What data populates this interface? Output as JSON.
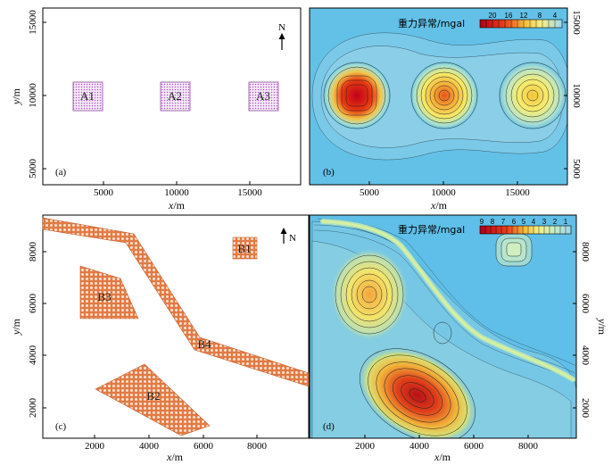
{
  "panels": [
    {
      "id": "a",
      "label": "(a)",
      "north": "N",
      "blocks": [
        {
          "name": "A1"
        },
        {
          "name": "A2"
        },
        {
          "name": "A3"
        }
      ],
      "xticks": [
        "5000",
        "10000",
        "15000"
      ],
      "yticks": [
        "5000",
        "10000",
        "15000"
      ],
      "xlabel": "x/m",
      "ylabel": "y/m"
    },
    {
      "id": "b",
      "label": "(b)",
      "colorbar_title": "重力异常/mgal",
      "colorbar_ticks": [
        "20",
        "16",
        "12",
        "8",
        "4"
      ],
      "xticks": [
        "5000",
        "10000",
        "15000"
      ],
      "yticks": [
        "5000",
        "10000",
        "15000"
      ],
      "xlabel": "x/m"
    },
    {
      "id": "c",
      "label": "(c)",
      "north": "N",
      "blocks": [
        {
          "name": "B1"
        },
        {
          "name": "B2"
        },
        {
          "name": "B3"
        },
        {
          "name": "B4"
        }
      ],
      "xticks": [
        "2000",
        "4000",
        "6000",
        "8000"
      ],
      "yticks": [
        "2000",
        "4000",
        "6000",
        "8000"
      ],
      "xlabel": "x/m",
      "ylabel": "y/m"
    },
    {
      "id": "d",
      "label": "(d)",
      "colorbar_title": "重力异常/mgal",
      "colorbar_ticks": [
        "9",
        "8",
        "7",
        "6",
        "5",
        "4",
        "3",
        "2",
        "1"
      ],
      "xticks": [
        "2000",
        "4000",
        "6000",
        "8000"
      ],
      "yticks": [
        "2000",
        "4000",
        "6000",
        "8000"
      ],
      "xlabel": "x/m",
      "ylabel": "y/m"
    }
  ],
  "colors": {
    "purple_block": "#c48ad6",
    "orange_block": "#e89a6a",
    "map_bg": "#5fbfe8"
  }
}
